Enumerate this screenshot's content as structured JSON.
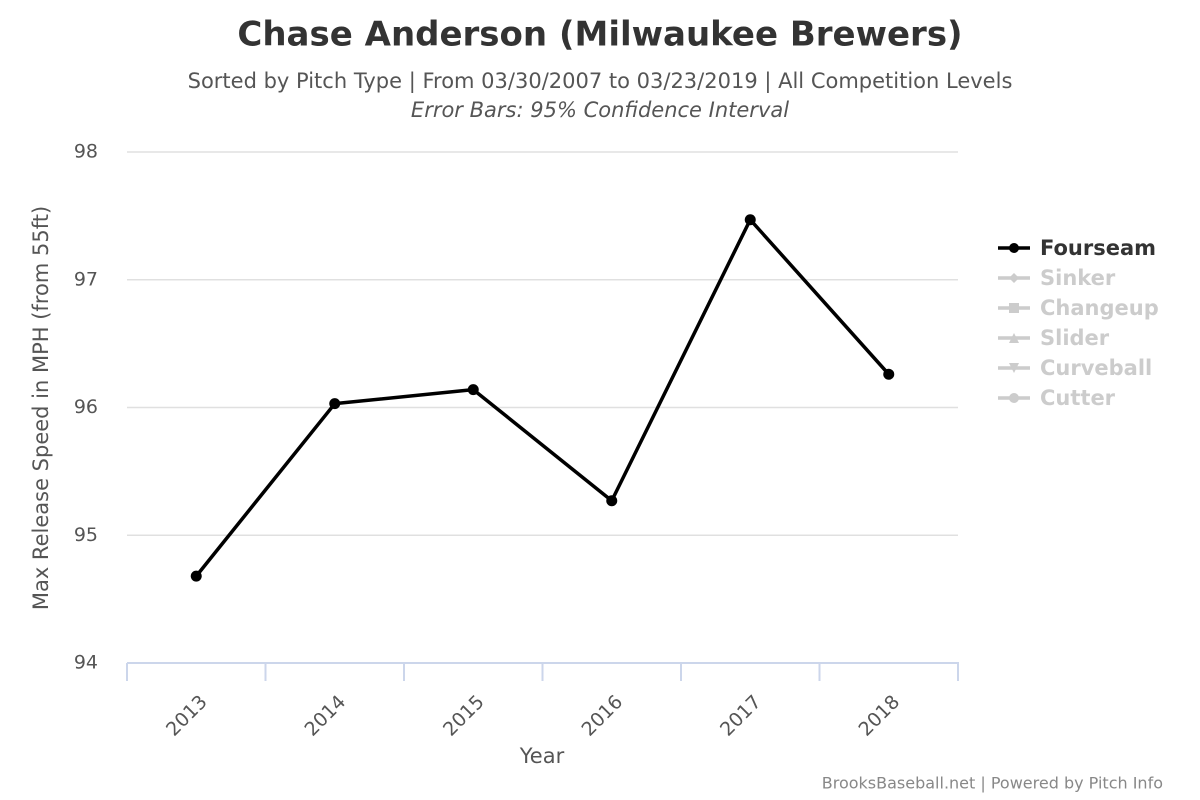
{
  "chart_data": {
    "type": "line",
    "title": "Chase Anderson (Milwaukee Brewers)",
    "subtitle": "Sorted by Pitch Type | From 03/30/2007 to 03/23/2019 | All Competition Levels",
    "subtitle2": "Error Bars: 95% Confidence Interval",
    "x_label": "Year",
    "y_label": "Max Release Speed in MPH (from 55ft)",
    "credits": "BrooksBaseball.net | Powered by Pitch Info",
    "categories": [
      "2013",
      "2014",
      "2015",
      "2016",
      "2017",
      "2018"
    ],
    "series": [
      {
        "name": "Fourseam",
        "color": "#000000",
        "marker": "circle",
        "visible": true,
        "values": [
          94.68,
          96.03,
          96.14,
          95.27,
          97.47,
          96.26
        ]
      },
      {
        "name": "Sinker",
        "color": "#cccccc",
        "marker": "diamond",
        "visible": false,
        "values": [
          null,
          null,
          null,
          null,
          null,
          null
        ]
      },
      {
        "name": "Changeup",
        "color": "#cccccc",
        "marker": "square",
        "visible": false,
        "values": [
          null,
          null,
          null,
          null,
          null,
          null
        ]
      },
      {
        "name": "Slider",
        "color": "#cccccc",
        "marker": "triangle",
        "visible": false,
        "values": [
          null,
          null,
          null,
          null,
          null,
          null
        ]
      },
      {
        "name": "Curveball",
        "color": "#cccccc",
        "marker": "triangle-down",
        "visible": false,
        "values": [
          null,
          null,
          null,
          null,
          null,
          null
        ]
      },
      {
        "name": "Cutter",
        "color": "#cccccc",
        "marker": "circle",
        "visible": false,
        "values": [
          null,
          null,
          null,
          null,
          null,
          null
        ]
      }
    ],
    "ylim": [
      94,
      98
    ],
    "yticks": [
      94,
      95,
      96,
      97,
      98
    ],
    "grid": true,
    "legend": "right"
  }
}
